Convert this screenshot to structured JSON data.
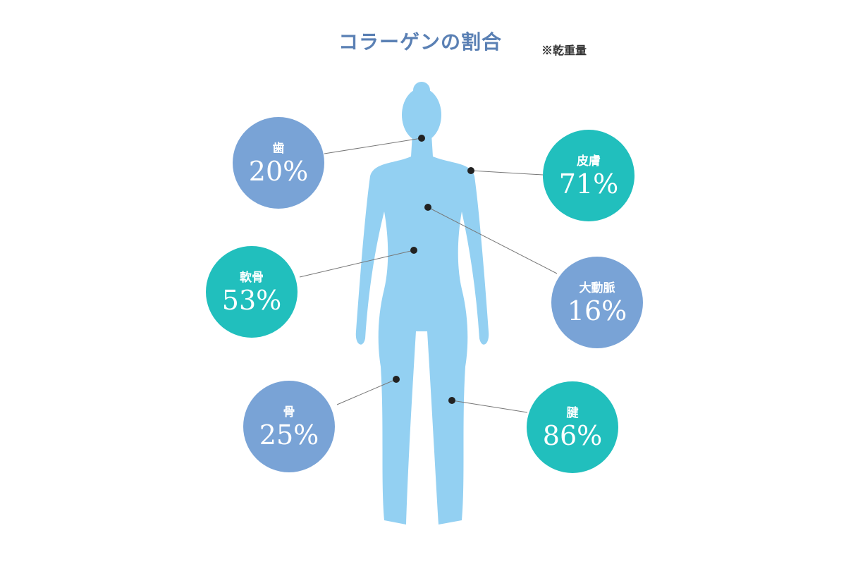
{
  "title": "コラーゲンの割合",
  "note": "※乾重量",
  "colors": {
    "teal": "#21bfbd",
    "blue": "#79a3d6",
    "body": "#93d0f2",
    "title": "#5a80b4"
  },
  "items": [
    {
      "label": "歯",
      "value": "20%",
      "color": "blue"
    },
    {
      "label": "皮膚",
      "value": "71%",
      "color": "teal"
    },
    {
      "label": "軟骨",
      "value": "53%",
      "color": "teal"
    },
    {
      "label": "大動脈",
      "value": "16%",
      "color": "blue"
    },
    {
      "label": "骨",
      "value": "25%",
      "color": "blue"
    },
    {
      "label": "腱",
      "value": "86%",
      "color": "teal"
    }
  ]
}
